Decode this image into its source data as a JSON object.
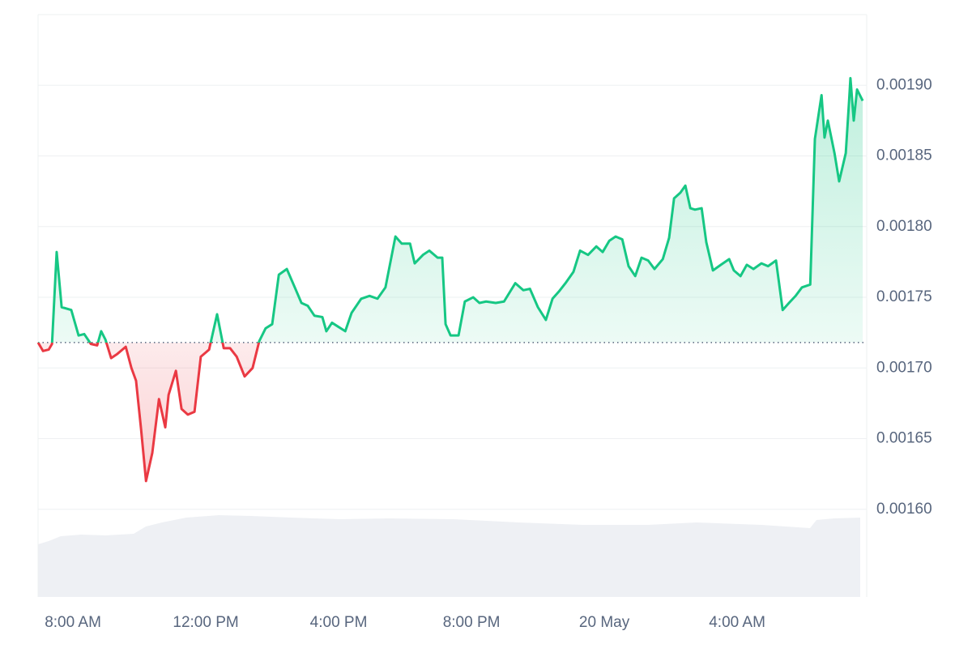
{
  "chart_data": {
    "type": "line",
    "x": [
      6.95,
      7.1,
      7.27,
      7.37,
      7.51,
      7.66,
      7.95,
      8.17,
      8.34,
      8.54,
      8.73,
      8.85,
      8.98,
      9.15,
      9.34,
      9.59,
      9.76,
      9.9,
      10.05,
      10.2,
      10.39,
      10.59,
      10.78,
      10.88,
      11.1,
      11.27,
      11.46,
      11.66,
      11.85,
      12.1,
      12.34,
      12.54,
      12.73,
      12.93,
      13.17,
      13.41,
      13.61,
      13.8,
      14.0,
      14.2,
      14.44,
      14.68,
      14.88,
      15.07,
      15.27,
      15.51,
      15.63,
      15.8,
      16.0,
      16.2,
      16.39,
      16.68,
      16.93,
      17.17,
      17.41,
      17.71,
      17.9,
      18.15,
      18.29,
      18.54,
      18.73,
      18.98,
      19.12,
      19.22,
      19.37,
      19.61,
      19.8,
      20.05,
      20.24,
      20.44,
      20.73,
      20.98,
      21.32,
      21.56,
      21.76,
      22.0,
      22.24,
      22.44,
      22.63,
      22.83,
      23.07,
      23.27,
      23.51,
      23.76,
      23.95,
      24.15,
      24.34,
      24.54,
      24.73,
      24.93,
      25.12,
      25.32,
      25.51,
      25.76,
      25.95,
      26.1,
      26.29,
      26.44,
      26.59,
      26.73,
      26.93,
      27.07,
      27.27,
      27.51,
      27.76,
      27.9,
      28.1,
      28.29,
      28.49,
      28.73,
      28.93,
      29.17,
      29.37,
      29.56,
      29.76,
      29.95,
      30.2,
      30.34,
      30.54,
      30.63,
      30.73,
      30.93,
      31.07,
      31.27,
      31.37,
      31.41,
      31.51,
      31.61,
      31.78
    ],
    "series": [
      {
        "color": "#16c784",
        "negative_color": "#ea3943",
        "values": [
          0.001718,
          0.001712,
          0.001713,
          0.001717,
          0.001782,
          0.001743,
          0.001741,
          0.001723,
          0.001724,
          0.001717,
          0.001716,
          0.001726,
          0.00172,
          0.001707,
          0.00171,
          0.001715,
          0.0017,
          0.001691,
          0.001657,
          0.00162,
          0.00164,
          0.001678,
          0.001658,
          0.001681,
          0.001698,
          0.001671,
          0.001667,
          0.001669,
          0.001708,
          0.001713,
          0.001738,
          0.001714,
          0.001714,
          0.001708,
          0.001694,
          0.0017,
          0.001719,
          0.001728,
          0.001731,
          0.001766,
          0.00177,
          0.001757,
          0.001746,
          0.001744,
          0.001737,
          0.001736,
          0.001726,
          0.001732,
          0.001729,
          0.001726,
          0.001739,
          0.001749,
          0.001751,
          0.001749,
          0.001757,
          0.001793,
          0.001788,
          0.001788,
          0.001774,
          0.00178,
          0.001783,
          0.001778,
          0.001778,
          0.001731,
          0.001723,
          0.001723,
          0.001747,
          0.00175,
          0.001746,
          0.001747,
          0.001746,
          0.001747,
          0.00176,
          0.001755,
          0.001756,
          0.001743,
          0.001734,
          0.001749,
          0.001754,
          0.00176,
          0.001768,
          0.001783,
          0.00178,
          0.001786,
          0.001782,
          0.00179,
          0.001793,
          0.001791,
          0.001772,
          0.001765,
          0.001778,
          0.001776,
          0.00177,
          0.001777,
          0.001792,
          0.00182,
          0.001824,
          0.001829,
          0.001813,
          0.001812,
          0.001813,
          0.001789,
          0.001769,
          0.001773,
          0.001777,
          0.001769,
          0.001765,
          0.001773,
          0.00177,
          0.001774,
          0.001772,
          0.001776,
          0.001741,
          0.001746,
          0.001751,
          0.001757,
          0.001759,
          0.001862,
          0.001893,
          0.001863,
          0.001875,
          0.001852,
          0.001832,
          0.001852,
          0.001889,
          0.001905,
          0.001875,
          0.001897,
          0.001889
        ]
      }
    ],
    "baseline": 0.001718,
    "xlim": [
      6.95,
      31.9
    ],
    "xticks": [
      {
        "value": 8,
        "label": "8:00 AM"
      },
      {
        "value": 12,
        "label": "12:00 PM"
      },
      {
        "value": 16,
        "label": "4:00 PM"
      },
      {
        "value": 20,
        "label": "8:00 PM"
      },
      {
        "value": 24,
        "label": "20 May"
      },
      {
        "value": 28,
        "label": "4:00 AM"
      }
    ],
    "ylim": [
      0.001538,
      0.00195
    ],
    "yticks": [
      {
        "value": 0.0016,
        "label": "0.00160"
      },
      {
        "value": 0.00165,
        "label": "0.00165"
      },
      {
        "value": 0.0017,
        "label": "0.00170"
      },
      {
        "value": 0.00175,
        "label": "0.00175"
      },
      {
        "value": 0.0018,
        "label": "0.00180"
      },
      {
        "value": 0.00185,
        "label": "0.00185"
      },
      {
        "value": 0.0019,
        "label": "0.00190"
      }
    ],
    "grid": true
  }
}
